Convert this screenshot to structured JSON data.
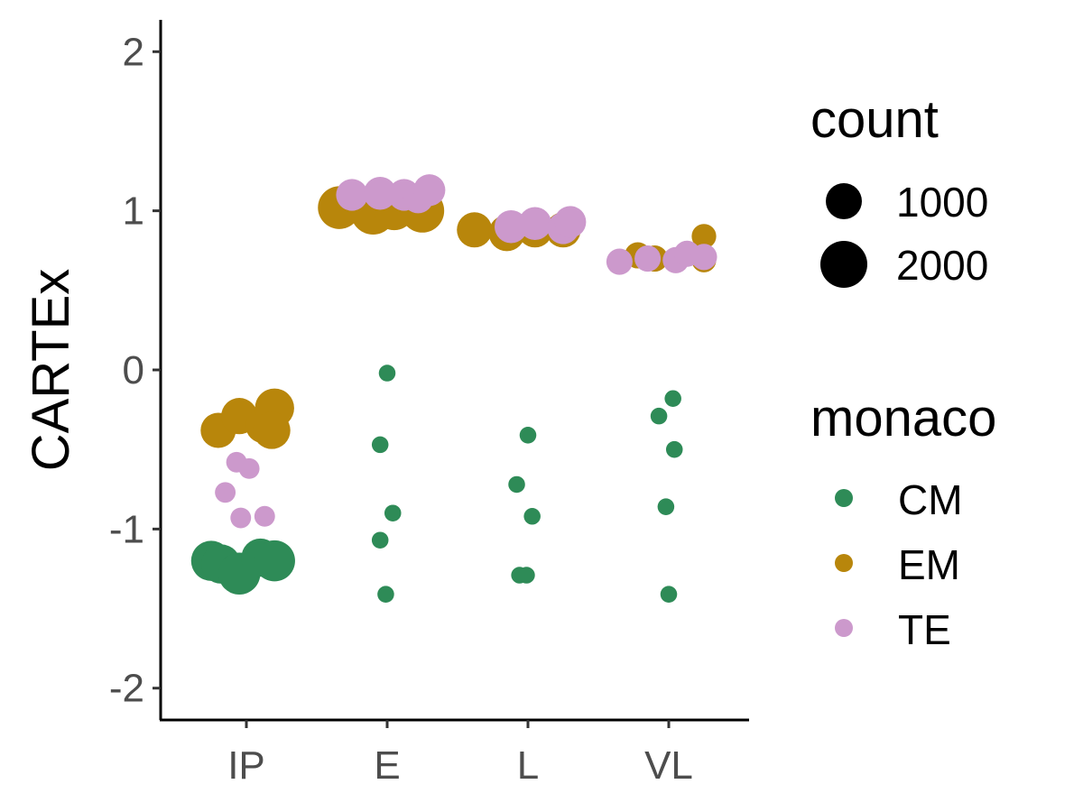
{
  "chart_data": {
    "type": "scatter",
    "title": "",
    "xlabel": "",
    "ylabel": "CARTEx",
    "categories": [
      "IP",
      "E",
      "L",
      "VL"
    ],
    "ylim": [
      -2.2,
      2.2
    ],
    "yticks": [
      -2,
      -1,
      0,
      1,
      2
    ],
    "ytick_labels": [
      "-2",
      "-1",
      "0",
      "1",
      "2"
    ],
    "grid": false,
    "legend_position": "right",
    "size_legend": {
      "title": "count",
      "entries": [
        {
          "label": "1000",
          "value": 1000
        },
        {
          "label": "2000",
          "value": 2000
        }
      ]
    },
    "color_legend": {
      "title": "monaco",
      "entries": [
        {
          "label": "CM",
          "color": "#2e8b57"
        },
        {
          "label": "EM",
          "color": "#b8860b"
        },
        {
          "label": "TE",
          "color": "#cc99cc"
        }
      ]
    },
    "series": [
      {
        "name": "CM",
        "color": "#2e8b57",
        "points": [
          {
            "x": "IP",
            "jitter": -0.25,
            "y": -1.2,
            "count": 1800
          },
          {
            "x": "IP",
            "jitter": -0.18,
            "y": -1.22,
            "count": 1700
          },
          {
            "x": "IP",
            "jitter": -0.05,
            "y": -1.28,
            "count": 2000
          },
          {
            "x": "IP",
            "jitter": 0.1,
            "y": -1.18,
            "count": 1600
          },
          {
            "x": "IP",
            "jitter": 0.2,
            "y": -1.2,
            "count": 1900
          },
          {
            "x": "E",
            "jitter": -0.05,
            "y": -0.47,
            "count": 150
          },
          {
            "x": "E",
            "jitter": 0.0,
            "y": -0.02,
            "count": 150
          },
          {
            "x": "E",
            "jitter": 0.04,
            "y": -0.9,
            "count": 150
          },
          {
            "x": "E",
            "jitter": -0.05,
            "y": -1.07,
            "count": 150
          },
          {
            "x": "E",
            "jitter": -0.01,
            "y": -1.41,
            "count": 150
          },
          {
            "x": "L",
            "jitter": 0.0,
            "y": -0.41,
            "count": 150
          },
          {
            "x": "L",
            "jitter": -0.08,
            "y": -0.72,
            "count": 150
          },
          {
            "x": "L",
            "jitter": 0.03,
            "y": -0.92,
            "count": 150
          },
          {
            "x": "L",
            "jitter": -0.06,
            "y": -1.29,
            "count": 150
          },
          {
            "x": "L",
            "jitter": -0.01,
            "y": -1.29,
            "count": 150
          },
          {
            "x": "VL",
            "jitter": 0.03,
            "y": -0.18,
            "count": 150
          },
          {
            "x": "VL",
            "jitter": -0.07,
            "y": -0.29,
            "count": 150
          },
          {
            "x": "VL",
            "jitter": 0.04,
            "y": -0.5,
            "count": 150
          },
          {
            "x": "VL",
            "jitter": -0.02,
            "y": -0.86,
            "count": 150
          },
          {
            "x": "VL",
            "jitter": 0.0,
            "y": -1.41,
            "count": 150
          }
        ]
      },
      {
        "name": "EM",
        "color": "#b8860b",
        "points": [
          {
            "x": "IP",
            "jitter": -0.2,
            "y": -0.38,
            "count": 1300
          },
          {
            "x": "IP",
            "jitter": -0.05,
            "y": -0.29,
            "count": 1400
          },
          {
            "x": "IP",
            "jitter": 0.12,
            "y": -0.35,
            "count": 1300
          },
          {
            "x": "IP",
            "jitter": 0.2,
            "y": -0.24,
            "count": 1700
          },
          {
            "x": "IP",
            "jitter": 0.18,
            "y": -0.38,
            "count": 1500
          },
          {
            "x": "E",
            "jitter": -0.34,
            "y": 1.02,
            "count": 2100
          },
          {
            "x": "E",
            "jitter": -0.1,
            "y": 0.99,
            "count": 2300
          },
          {
            "x": "E",
            "jitter": 0.05,
            "y": 1.01,
            "count": 2000
          },
          {
            "x": "E",
            "jitter": 0.25,
            "y": 1.0,
            "count": 2200
          },
          {
            "x": "L",
            "jitter": -0.38,
            "y": 0.88,
            "count": 1300
          },
          {
            "x": "L",
            "jitter": -0.15,
            "y": 0.86,
            "count": 1400
          },
          {
            "x": "L",
            "jitter": 0.05,
            "y": 0.88,
            "count": 1300
          },
          {
            "x": "L",
            "jitter": 0.25,
            "y": 0.88,
            "count": 1300
          },
          {
            "x": "VL",
            "jitter": -0.22,
            "y": 0.72,
            "count": 600
          },
          {
            "x": "VL",
            "jitter": -0.1,
            "y": 0.7,
            "count": 600
          },
          {
            "x": "VL",
            "jitter": 0.25,
            "y": 0.84,
            "count": 500
          },
          {
            "x": "VL",
            "jitter": 0.25,
            "y": 0.69,
            "count": 500
          }
        ]
      },
      {
        "name": "TE",
        "color": "#cc99cc",
        "points": [
          {
            "x": "IP",
            "jitter": -0.07,
            "y": -0.58,
            "count": 300
          },
          {
            "x": "IP",
            "jitter": 0.02,
            "y": -0.62,
            "count": 300
          },
          {
            "x": "IP",
            "jitter": -0.15,
            "y": -0.77,
            "count": 300
          },
          {
            "x": "IP",
            "jitter": -0.04,
            "y": -0.93,
            "count": 300
          },
          {
            "x": "IP",
            "jitter": 0.13,
            "y": -0.92,
            "count": 300
          },
          {
            "x": "E",
            "jitter": -0.25,
            "y": 1.1,
            "count": 1000
          },
          {
            "x": "E",
            "jitter": -0.05,
            "y": 1.11,
            "count": 1100
          },
          {
            "x": "E",
            "jitter": 0.12,
            "y": 1.1,
            "count": 1000
          },
          {
            "x": "E",
            "jitter": 0.22,
            "y": 1.08,
            "count": 900
          },
          {
            "x": "E",
            "jitter": 0.3,
            "y": 1.13,
            "count": 1000
          },
          {
            "x": "L",
            "jitter": -0.12,
            "y": 0.9,
            "count": 1100
          },
          {
            "x": "L",
            "jitter": 0.05,
            "y": 0.92,
            "count": 1100
          },
          {
            "x": "L",
            "jitter": 0.25,
            "y": 0.89,
            "count": 1000
          },
          {
            "x": "L",
            "jitter": 0.3,
            "y": 0.93,
            "count": 1000
          },
          {
            "x": "VL",
            "jitter": -0.35,
            "y": 0.68,
            "count": 600
          },
          {
            "x": "VL",
            "jitter": -0.15,
            "y": 0.7,
            "count": 600
          },
          {
            "x": "VL",
            "jitter": 0.05,
            "y": 0.69,
            "count": 600
          },
          {
            "x": "VL",
            "jitter": 0.13,
            "y": 0.73,
            "count": 600
          },
          {
            "x": "VL",
            "jitter": 0.25,
            "y": 0.71,
            "count": 600
          }
        ]
      }
    ]
  }
}
